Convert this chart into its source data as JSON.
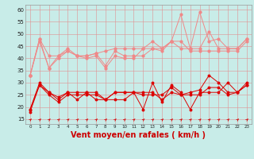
{
  "title": "",
  "xlabel": "Vent moyen/en rafales ( km/h )",
  "ylabel": "",
  "bg_color": "#c8ece8",
  "grid_color": "#e09090",
  "x": [
    0,
    1,
    2,
    3,
    4,
    5,
    6,
    7,
    8,
    9,
    10,
    11,
    12,
    13,
    14,
    15,
    16,
    17,
    18,
    19,
    20,
    21,
    22,
    23
  ],
  "light_lines": [
    [
      33,
      48,
      36,
      41,
      43,
      41,
      41,
      42,
      37,
      43,
      41,
      41,
      41,
      44,
      44,
      47,
      44,
      44,
      44,
      51,
      44,
      44,
      44,
      48
    ],
    [
      33,
      48,
      41,
      41,
      44,
      41,
      41,
      42,
      43,
      44,
      44,
      44,
      44,
      47,
      44,
      47,
      58,
      44,
      59,
      47,
      48,
      44,
      44,
      48
    ],
    [
      33,
      47,
      36,
      40,
      43,
      41,
      40,
      41,
      36,
      41,
      40,
      40,
      44,
      44,
      43,
      47,
      47,
      43,
      43,
      43,
      43,
      43,
      43,
      47
    ]
  ],
  "dark_lines": [
    [
      19,
      30,
      26,
      24,
      26,
      23,
      26,
      23,
      23,
      23,
      23,
      26,
      19,
      30,
      22,
      29,
      26,
      19,
      26,
      26,
      26,
      30,
      26,
      30
    ],
    [
      19,
      29,
      25,
      22,
      25,
      25,
      25,
      25,
      23,
      26,
      26,
      26,
      25,
      25,
      25,
      28,
      25,
      25,
      25,
      28,
      28,
      25,
      26,
      29
    ],
    [
      18,
      29,
      26,
      23,
      26,
      26,
      26,
      26,
      23,
      26,
      26,
      26,
      26,
      26,
      23,
      26,
      25,
      26,
      27,
      33,
      30,
      26,
      26,
      29
    ]
  ],
  "light_color": "#f08888",
  "dark_color": "#dd0000",
  "arrow_color": "#cc0000",
  "ylim": [
    13,
    62
  ],
  "yticks": [
    15,
    20,
    25,
    30,
    35,
    40,
    45,
    50,
    55,
    60
  ],
  "xlabel_color": "#cc0000",
  "xlabel_fontsize": 7,
  "ytick_fontsize": 5,
  "xtick_fontsize": 4
}
